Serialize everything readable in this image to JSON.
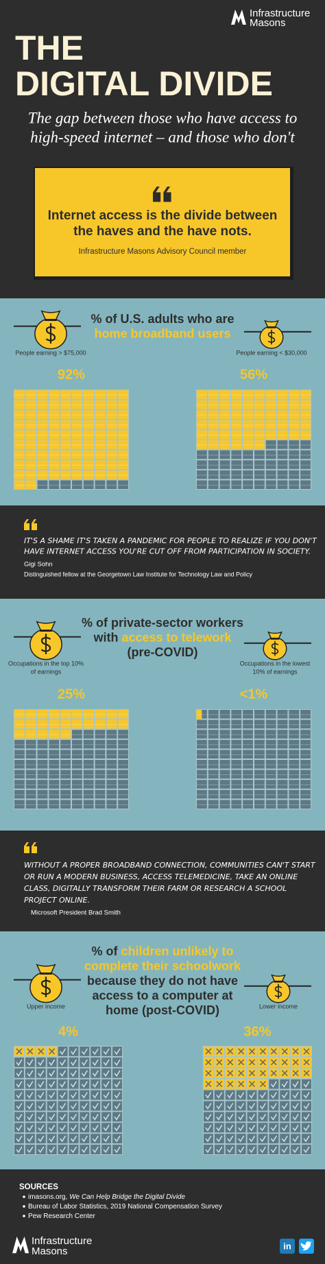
{
  "header": {
    "brand": [
      "Infrastructure",
      "Masons"
    ],
    "title_lines": [
      "THE",
      "DIGITAL DIVIDE"
    ],
    "subtitle_lines": [
      "The gap between those who have access to",
      "high-speed internet – and those who don't"
    ]
  },
  "lead_quote": {
    "lines": [
      "Internet access is the divide between",
      "the haves and the have nots."
    ],
    "source": "Infrastructure Masons Advisory Council member"
  },
  "sections": [
    {
      "title_lines": [
        [
          {
            "text": "% of U.S. adults who are"
          }
        ],
        [
          {
            "text": "home broadband users",
            "color": "#f7c72a"
          }
        ]
      ],
      "cell_style": "block",
      "groups": [
        {
          "label_lines": [
            "People earning > $75,000"
          ],
          "value": 92,
          "value_label": "92%"
        },
        {
          "label_lines": [
            "People earning < $30,000"
          ],
          "value": 56,
          "value_label": "56%"
        }
      ]
    },
    {
      "title_lines": [
        [
          {
            "text": "% of private-sector workers"
          }
        ],
        [
          {
            "text": "with"
          },
          {
            "text": "access to telework",
            "color": "#f7c72a"
          }
        ],
        [
          {
            "text": "(pre-COVID)"
          }
        ]
      ],
      "cell_style": "block",
      "groups": [
        {
          "label_lines": [
            "Occupations in the top 10%",
            "of earnings"
          ],
          "value": 25,
          "value_label": "25%"
        },
        {
          "label_lines": [
            "Occupations in the lowest",
            "10% of earnings"
          ],
          "value": 0.5,
          "value_label": "<1%"
        }
      ]
    },
    {
      "title_lines": [
        [
          {
            "text": "% of"
          },
          {
            "text": "children unlikely to",
            "color": "#f7c72a"
          }
        ],
        [
          {
            "text": "complete their schoolwork",
            "color": "#f7c72a"
          }
        ],
        [
          {
            "text": "because they do not have"
          }
        ],
        [
          {
            "text": "access to a computer at"
          }
        ],
        [
          {
            "text": "home (post-COVID)"
          }
        ]
      ],
      "cell_style": "check",
      "groups": [
        {
          "label_lines": [
            "Upper income"
          ],
          "value": 4,
          "value_label": "4%"
        },
        {
          "label_lines": [
            "Lower income"
          ],
          "value": 36,
          "value_label": "36%"
        }
      ]
    }
  ],
  "quotes": [
    {
      "lines": [
        "IT'S A SHAME IT'S TAKEN A PANDEMIC FOR PEOPLE TO REALIZE IF YOU DON'T",
        "HAVE INTERNET ACCESS YOU'RE CUT OFF FROM PARTICIPATION IN SOCIETY."
      ],
      "name": "Gigi Sohn",
      "role": "Distinguished fellow at the Georgetown Law Institute for Technology Law and Policy"
    },
    {
      "lines": [
        "WITHOUT A PROPER BROADBAND CONNECTION, COMMUNITIES CAN'T START",
        "OR RUN A MODERN BUSINESS, ACCESS TELEMEDICINE, TAKE AN ONLINE",
        "CLASS, DIGITALLY TRANSFORM THEIR FARM OR RESEARCH A SCHOOL",
        "PROJECT ONLINE."
      ],
      "name": "Microsoft President Brad Smith"
    }
  ],
  "footer": {
    "heading": "SOURCES",
    "sources": [
      [
        {
          "text": "imasons.org,"
        },
        {
          "text": "We Can Help Bridge the Digital Divide",
          "style": "italic"
        }
      ],
      [
        {
          "text": "Bureau of Labor Statistics, 2019 National Compensation Survey"
        }
      ],
      [
        {
          "text": "Pew Research Center"
        }
      ]
    ],
    "linkedin": "in"
  }
}
